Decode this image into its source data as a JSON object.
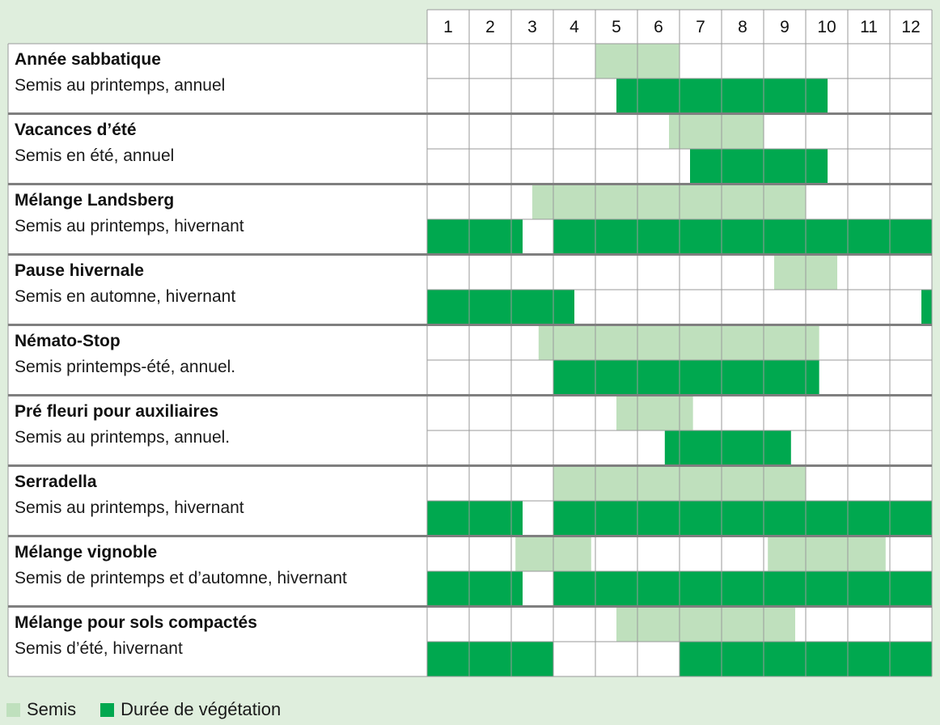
{
  "colors": {
    "background": "#dfeedd",
    "sowing": "#bfe0bd",
    "growing": "#00a84f",
    "grid": "#9a9a9a",
    "separator": "#7f7f7f"
  },
  "legend": {
    "sowing_label": "Semis",
    "growing_label": "Durée de végétation"
  },
  "chart_data": {
    "type": "table",
    "title": "",
    "months": [
      "1",
      "2",
      "3",
      "4",
      "5",
      "6",
      "7",
      "8",
      "9",
      "10",
      "11",
      "12"
    ],
    "rows": [
      {
        "name": "Année sabbatique",
        "description": "Semis au printemps, annuel",
        "sowing": [
          [
            5.0,
            6.99
          ]
        ],
        "growing": [
          [
            5.5,
            10.52
          ]
        ]
      },
      {
        "name": "Vacances d’été",
        "description": "Semis en été, annuel",
        "sowing": [
          [
            6.75,
            9.0
          ]
        ],
        "growing": [
          [
            7.25,
            10.52
          ]
        ]
      },
      {
        "name": "Mélange Landsberg",
        "description": "Semis au printemps, hivernant",
        "sowing": [
          [
            3.5,
            9.99
          ]
        ],
        "growing": [
          [
            1.0,
            3.27
          ],
          [
            4.0,
            13.0
          ]
        ]
      },
      {
        "name": "Pause hivernale",
        "description": "Semis en automne, hivernant",
        "sowing": [
          [
            9.25,
            10.75
          ]
        ],
        "growing": [
          [
            1.0,
            4.5
          ],
          [
            12.75,
            13.0
          ]
        ]
      },
      {
        "name": "Némato-Stop",
        "description": "Semis printemps-été, annuel.",
        "sowing": [
          [
            3.65,
            10.32
          ]
        ],
        "growing": [
          [
            4.0,
            10.32
          ]
        ]
      },
      {
        "name": "Pré fleuri pour auxiliaires",
        "description": "Semis au printemps, annuel.",
        "sowing": [
          [
            5.5,
            7.32
          ]
        ],
        "growing": [
          [
            6.65,
            9.65
          ]
        ]
      },
      {
        "name": "Serradella",
        "description": "Semis au printemps, hivernant",
        "sowing": [
          [
            4.0,
            9.99
          ]
        ],
        "growing": [
          [
            1.0,
            3.27
          ],
          [
            4.0,
            13.0
          ]
        ]
      },
      {
        "name": "Mélange vignoble",
        "description": "Semis de printemps et d’automne, hivernant",
        "sowing": [
          [
            3.1,
            4.9
          ],
          [
            9.1,
            11.9
          ]
        ],
        "growing": [
          [
            1.0,
            3.27
          ],
          [
            4.0,
            13.0
          ]
        ]
      },
      {
        "name": "Mélange pour sols compactés",
        "description": "Semis d’été, hivernant",
        "sowing": [
          [
            5.5,
            9.75
          ]
        ],
        "growing": [
          [
            1.0,
            4.0
          ],
          [
            7.0,
            13.0
          ]
        ]
      }
    ]
  }
}
